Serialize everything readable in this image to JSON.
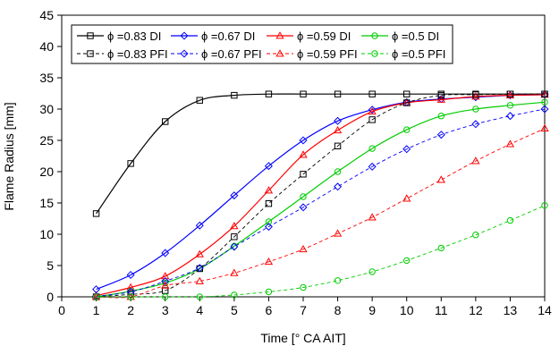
{
  "chart_data": {
    "type": "line",
    "xlabel": "Time [° CA AIT]",
    "ylabel": "Flame Radius [mm]",
    "xlim": [
      0,
      14
    ],
    "ylim": [
      0,
      45
    ],
    "xticks": [
      0,
      1,
      2,
      3,
      4,
      5,
      6,
      7,
      8,
      9,
      10,
      11,
      12,
      13,
      14
    ],
    "yticks": [
      0,
      5,
      10,
      15,
      20,
      25,
      30,
      35,
      40,
      45
    ],
    "grid": false,
    "legend_placement": "top-left",
    "series": [
      {
        "name": "ϕ =0.83 DI",
        "color": "#000000",
        "dash": "solid",
        "marker": "square",
        "x": [
          1,
          2,
          3,
          4,
          5,
          6,
          7,
          8,
          9,
          10,
          11,
          12,
          13,
          14
        ],
        "y": [
          13.3,
          21.3,
          28.0,
          31.4,
          32.2,
          32.4,
          32.4,
          32.4,
          32.4,
          32.4,
          32.4,
          32.4,
          32.4,
          32.4
        ]
      },
      {
        "name": "ϕ =0.67 DI",
        "color": "#0000ff",
        "dash": "solid",
        "marker": "diamond",
        "x": [
          1,
          2,
          3,
          4,
          5,
          6,
          7,
          8,
          9,
          10,
          11,
          12,
          13,
          14
        ],
        "y": [
          1.2,
          3.5,
          7.0,
          11.4,
          16.2,
          20.9,
          25.0,
          28.1,
          29.9,
          31.1,
          31.6,
          31.9,
          32.2,
          32.3
        ]
      },
      {
        "name": "ϕ =0.59 DI",
        "color": "#ff0000",
        "dash": "solid",
        "marker": "triangle",
        "x": [
          1,
          2,
          3,
          4,
          5,
          6,
          7,
          8,
          9,
          10,
          11,
          12,
          13,
          14
        ],
        "y": [
          0.2,
          1.5,
          3.3,
          6.8,
          11.3,
          17.0,
          22.7,
          26.6,
          29.6,
          31.0,
          31.5,
          32.0,
          32.2,
          32.3
        ]
      },
      {
        "name": "ϕ =0.5 DI",
        "color": "#00cc00",
        "dash": "solid",
        "marker": "circle",
        "x": [
          1,
          2,
          3,
          4,
          5,
          6,
          7,
          8,
          9,
          10,
          11,
          12,
          13,
          14
        ],
        "y": [
          0.0,
          0.9,
          2.2,
          4.5,
          8.1,
          12.0,
          16.0,
          20.0,
          23.7,
          26.7,
          28.9,
          30.0,
          30.6,
          31.1
        ]
      },
      {
        "name": "ϕ =0.83 PFI",
        "color": "#000000",
        "dash": "dashed",
        "marker": "square",
        "x": [
          1,
          2,
          3,
          4,
          5,
          6,
          7,
          8,
          9,
          10,
          11,
          12,
          13,
          14
        ],
        "y": [
          0.0,
          0.4,
          1.0,
          4.5,
          9.6,
          14.9,
          19.6,
          24.1,
          28.3,
          31.0,
          32.2,
          32.3,
          32.4,
          32.4
        ]
      },
      {
        "name": "ϕ =0.67 PFI",
        "color": "#0000ff",
        "dash": "dashed",
        "marker": "diamond",
        "x": [
          1,
          2,
          3,
          4,
          5,
          6,
          7,
          8,
          9,
          10,
          11,
          12,
          13,
          14
        ],
        "y": [
          0.1,
          0.8,
          2.5,
          4.6,
          8.0,
          11.2,
          14.3,
          17.6,
          20.8,
          23.6,
          25.9,
          27.6,
          28.9,
          30.0
        ]
      },
      {
        "name": "ϕ =0.59 PFI",
        "color": "#ff0000",
        "dash": "dashed",
        "marker": "triangle",
        "x": [
          1,
          2,
          3,
          4,
          5,
          6,
          7,
          8,
          9,
          10,
          11,
          12,
          13,
          14
        ],
        "y": [
          0.0,
          0.0,
          1.8,
          2.5,
          3.8,
          5.6,
          7.6,
          10.1,
          12.7,
          15.7,
          18.7,
          21.7,
          24.4,
          26.9
        ]
      },
      {
        "name": "ϕ =0.5 PFI",
        "color": "#00cc00",
        "dash": "dashed",
        "marker": "circle",
        "x": [
          1,
          2,
          3,
          4,
          5,
          6,
          7,
          8,
          9,
          10,
          11,
          12,
          13,
          14
        ],
        "y": [
          0.0,
          0.0,
          0.0,
          0.0,
          0.3,
          0.8,
          1.5,
          2.6,
          4.0,
          5.8,
          7.8,
          9.9,
          12.2,
          14.6
        ]
      }
    ]
  }
}
